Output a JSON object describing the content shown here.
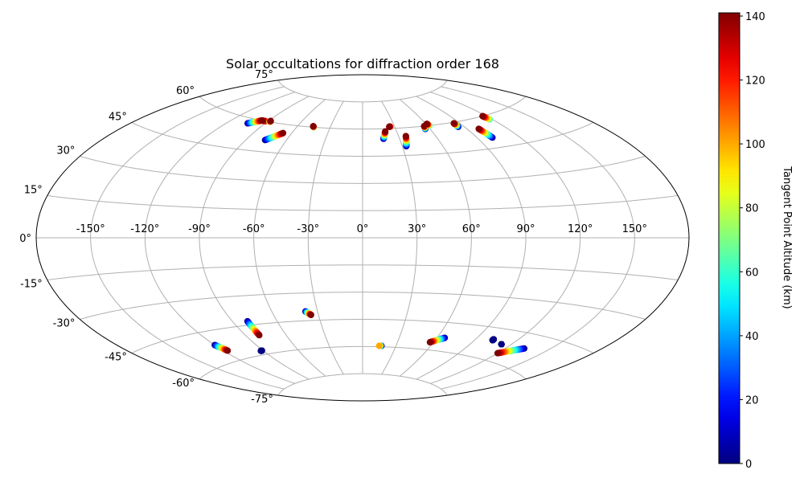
{
  "chart_data": {
    "type": "scatter",
    "projection": "aitoff",
    "title": "Solar occultations for diffraction order 168",
    "xlabel": "",
    "ylabel": "",
    "grid": true,
    "lon_ticks": [
      -150,
      -120,
      -90,
      -60,
      -30,
      0,
      30,
      60,
      90,
      120,
      150
    ],
    "lon_tick_labels": [
      "-150°",
      "-120°",
      "-90°",
      "-60°",
      "-30°",
      "0°",
      "30°",
      "60°",
      "90°",
      "120°",
      "150°"
    ],
    "lat_ticks": [
      -75,
      -60,
      -45,
      -30,
      -15,
      0,
      15,
      30,
      45,
      60,
      75
    ],
    "lat_tick_labels": [
      "-75°",
      "-60°",
      "-45°",
      "-30°",
      "-15°",
      "0°",
      "15°",
      "30°",
      "45°",
      "60°",
      "75°"
    ],
    "colormap": "jet",
    "colorbar": {
      "label": "Tangent Point Altitude (km)",
      "range": [
        0,
        141
      ],
      "ticks": [
        0,
        20,
        40,
        60,
        80,
        100,
        120,
        140
      ],
      "tick_labels": [
        "0",
        "20",
        "40",
        "60",
        "80",
        "100",
        "120",
        "140"
      ]
    },
    "tracks": [
      {
        "start": {
          "lon": -104,
          "lat": 57.5,
          "alt": 0
        },
        "end": {
          "lon": -96,
          "lat": 60,
          "alt": 141
        }
      },
      {
        "start": {
          "lon": -92,
          "lat": 60,
          "alt": 110
        },
        "end": {
          "lon": -96,
          "lat": 60,
          "alt": 141
        }
      },
      {
        "start": {
          "lon": -88,
          "lat": 60,
          "alt": 60
        },
        "end": {
          "lon": -88,
          "lat": 60.5,
          "alt": 141
        }
      },
      {
        "start": {
          "lon": -76,
          "lat": 51,
          "alt": 0
        },
        "end": {
          "lon": -67,
          "lat": 55.5,
          "alt": 141
        }
      },
      {
        "start": {
          "lon": -45,
          "lat": 60,
          "alt": 60
        },
        "end": {
          "lon": -46,
          "lat": 60.5,
          "alt": 141
        }
      },
      {
        "start": {
          "lon": 17,
          "lat": 54.5,
          "alt": 0
        },
        "end": {
          "lon": 20,
          "lat": 58.5,
          "alt": 141
        }
      },
      {
        "start": {
          "lon": 26,
          "lat": 61,
          "alt": 100
        },
        "end": {
          "lon": 25,
          "lat": 61,
          "alt": 141
        }
      },
      {
        "start": {
          "lon": 33,
          "lat": 50,
          "alt": 0
        },
        "end": {
          "lon": 36,
          "lat": 55.5,
          "alt": 141
        }
      },
      {
        "start": {
          "lon": 56,
          "lat": 58.5,
          "alt": 0
        },
        "end": {
          "lon": 57,
          "lat": 60,
          "alt": 141
        }
      },
      {
        "start": {
          "lon": 62,
          "lat": 60,
          "alt": 60
        },
        "end": {
          "lon": 61,
          "lat": 61,
          "alt": 141
        }
      },
      {
        "start": {
          "lon": 85,
          "lat": 57.5,
          "alt": 0
        },
        "end": {
          "lon": 85,
          "lat": 59.5,
          "alt": 141
        }
      },
      {
        "start": {
          "lon": 101,
          "lat": 50,
          "alt": 0
        },
        "end": {
          "lon": 99,
          "lat": 55,
          "alt": 141
        }
      },
      {
        "start": {
          "lon": 118,
          "lat": 58,
          "alt": 60
        },
        "end": {
          "lon": 117,
          "lat": 60,
          "alt": 141
        }
      },
      {
        "start": {
          "lon": -120,
          "lat": -51.5,
          "alt": 0
        },
        "end": {
          "lon": -117,
          "lat": -55,
          "alt": 141
        }
      },
      {
        "start": {
          "lon": -80,
          "lat": -43,
          "alt": 0
        },
        "end": {
          "lon": -80,
          "lat": -50.5,
          "alt": 141
        }
      },
      {
        "start": {
          "lon": -91,
          "lat": -58,
          "alt": 0
        },
        "end": {
          "lon": -92,
          "lat": -58,
          "alt": 0
        }
      },
      {
        "start": {
          "lon": -38,
          "lat": -40,
          "alt": 0
        },
        "end": {
          "lon": -35,
          "lat": -42,
          "alt": 141
        }
      },
      {
        "start": {
          "lon": 17,
          "lat": -59.5,
          "alt": 0
        },
        "end": {
          "lon": 15,
          "lat": -59.5,
          "alt": 100
        }
      },
      {
        "start": {
          "lon": 66,
          "lat": -53,
          "alt": 0
        },
        "end": {
          "lon": 57,
          "lat": -56,
          "alt": 141
        }
      },
      {
        "start": {
          "lon": 103,
          "lat": -50.5,
          "alt": 0
        },
        "end": {
          "lon": 103,
          "lat": -51,
          "alt": 0
        }
      },
      {
        "start": {
          "lon": 113,
          "lat": -52,
          "alt": 0
        },
        "end": {
          "lon": 113,
          "lat": -52,
          "alt": 0
        }
      },
      {
        "start": {
          "lon": 133,
          "lat": -51.5,
          "alt": 0
        },
        "end": {
          "lon": 120,
          "lat": -56,
          "alt": 141
        }
      }
    ]
  }
}
